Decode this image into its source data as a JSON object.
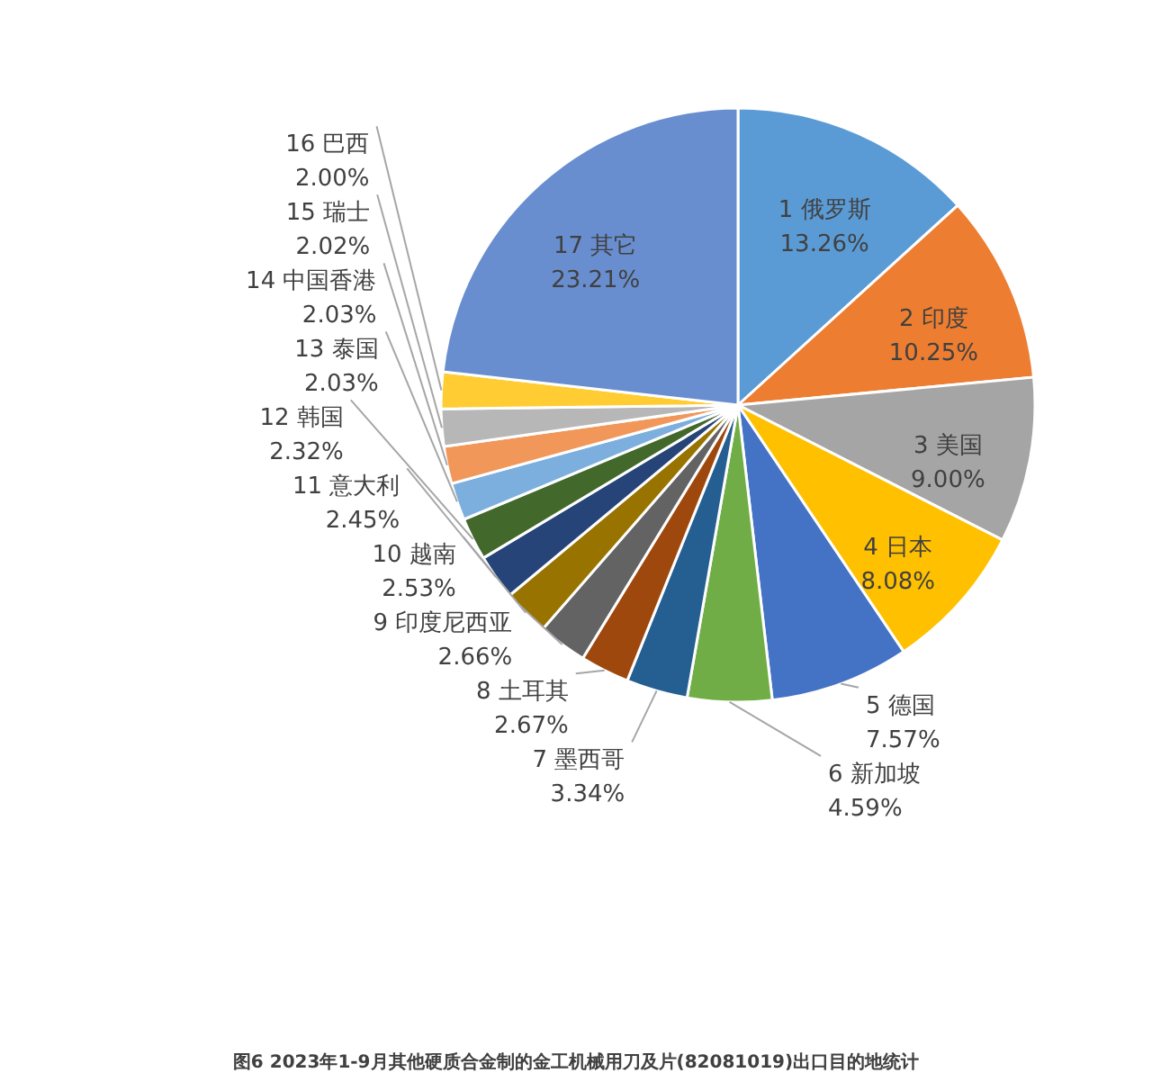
{
  "chart_data": {
    "type": "pie",
    "categories": [
      "1 俄罗斯",
      "2 印度",
      "3 美国",
      "4 日本",
      "5 德国",
      "6 新加坡",
      "7 墨西哥",
      "8 土耳其",
      "9 印度尼西亚",
      "10 越南",
      "11 意大利",
      "12 韩国",
      "13 泰国",
      "14 中国香港",
      "15 瑞士",
      "16 巴西",
      "17 其它"
    ],
    "values": [
      13.26,
      10.25,
      9.0,
      8.08,
      7.57,
      4.59,
      3.34,
      2.67,
      2.66,
      2.53,
      2.45,
      2.32,
      2.03,
      2.03,
      2.02,
      2.0,
      23.21
    ],
    "value_labels": [
      "13.26%",
      "10.25%",
      "9.00%",
      "8.08%",
      "7.57%",
      "4.59%",
      "3.34%",
      "2.67%",
      "2.66%",
      "2.53%",
      "2.45%",
      "2.32%",
      "2.03%",
      "2.03%",
      "2.02%",
      "2.00%",
      "23.21%"
    ],
    "colors": [
      "#5b9bd5",
      "#ed7d31",
      "#a5a5a5",
      "#ffc000",
      "#4472c4",
      "#70ad47",
      "#255e91",
      "#9e480e",
      "#636363",
      "#997300",
      "#264478",
      "#43682b",
      "#7cafdd",
      "#f1975a",
      "#b7b7b7",
      "#ffcd33",
      "#698ed0"
    ],
    "annotations": [
      "图6 2023年1-9月其他硬质合金制的金工机械用刀及片(82081019)出口目的地统计"
    ]
  }
}
